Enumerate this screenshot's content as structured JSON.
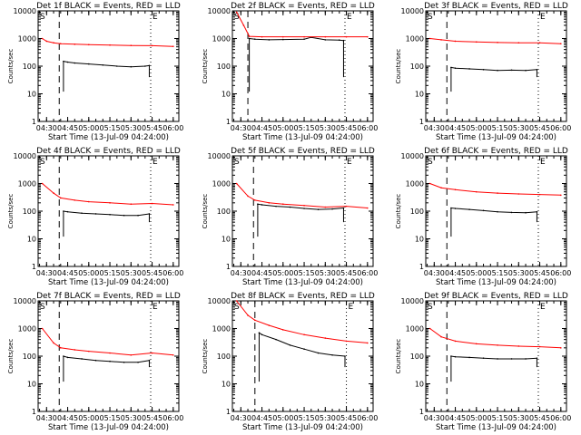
{
  "figure": {
    "x_tick_labels": [
      "04:30",
      "04:45",
      "05:00",
      "05:15",
      "05:30",
      "05:45",
      "06:00"
    ],
    "y_tick_labels": [
      "1",
      "10",
      "100",
      "1000",
      "10000"
    ],
    "xlabel": "Start Time (13-Jul-09 04:24:00)",
    "ylabel": "Counts/sec",
    "marker_s": "S",
    "marker_e": "E",
    "colors": {
      "events": "#000000",
      "lld": "#ff0000"
    }
  },
  "chart_data": [
    {
      "type": "line",
      "title": "Det 1f BLACK = Events, RED = LLD",
      "xlabel": "Start Time (13-Jul-09 04:24:00)",
      "ylabel": "Counts/sec",
      "ylog": true,
      "ylim": [
        1,
        10000
      ],
      "xlim": [
        "04:24",
        "06:04"
      ],
      "start_marker": "04:39",
      "end_marker": "05:44",
      "series": [
        {
          "name": "BLACK = Events",
          "color": "#000000",
          "x": [
            "04:42",
            "04:45",
            "04:50",
            "05:00",
            "05:10",
            "05:20",
            "05:30",
            "05:40",
            "05:43"
          ],
          "values": [
            150,
            140,
            130,
            120,
            110,
            100,
            95,
            100,
            105
          ]
        },
        {
          "name": "RED = LLD",
          "color": "#ff0000",
          "x": [
            "04:27",
            "04:30",
            "04:35",
            "04:40",
            "04:50",
            "05:00",
            "05:15",
            "05:30",
            "05:45",
            "06:00"
          ],
          "values": [
            1000,
            800,
            700,
            650,
            620,
            600,
            580,
            560,
            550,
            520
          ]
        }
      ]
    },
    {
      "type": "line",
      "title": "Det 2f BLACK = Events, RED = LLD",
      "xlabel": "Start Time (13-Jul-09 04:24:00)",
      "ylabel": "Counts/sec",
      "ylog": true,
      "ylim": [
        1,
        10000
      ],
      "xlim": [
        "04:24",
        "06:04"
      ],
      "start_marker": "04:35",
      "end_marker": "05:44",
      "series": [
        {
          "name": "BLACK = Events",
          "color": "#000000",
          "x": [
            "04:36",
            "04:40",
            "04:50",
            "05:00",
            "05:15",
            "05:20",
            "05:30",
            "05:40",
            "05:43"
          ],
          "values": [
            1000,
            950,
            900,
            920,
            950,
            1100,
            900,
            880,
            850
          ]
        },
        {
          "name": "RED = LLD",
          "color": "#ff0000",
          "x": [
            "04:27",
            "04:32",
            "04:36",
            "04:45",
            "05:00",
            "05:15",
            "05:30",
            "05:45",
            "06:00"
          ],
          "values": [
            9000,
            3000,
            1200,
            1150,
            1150,
            1150,
            1150,
            1150,
            1150
          ]
        }
      ]
    },
    {
      "type": "line",
      "title": "Det 3f BLACK = Events, RED = LLD",
      "xlabel": "Start Time (13-Jul-09 04:24:00)",
      "ylabel": "Counts/sec",
      "ylog": true,
      "ylim": [
        1,
        10000
      ],
      "xlim": [
        "04:24",
        "06:04"
      ],
      "start_marker": "04:39",
      "end_marker": "05:44",
      "series": [
        {
          "name": "BLACK = Events",
          "color": "#000000",
          "x": [
            "04:42",
            "04:45",
            "04:55",
            "05:05",
            "05:15",
            "05:25",
            "05:35",
            "05:43"
          ],
          "values": [
            90,
            85,
            80,
            75,
            70,
            72,
            70,
            75
          ]
        },
        {
          "name": "RED = LLD",
          "color": "#ff0000",
          "x": [
            "04:27",
            "04:35",
            "04:45",
            "05:00",
            "05:15",
            "05:30",
            "05:45",
            "06:00"
          ],
          "values": [
            1000,
            900,
            800,
            750,
            720,
            700,
            700,
            650
          ]
        }
      ]
    },
    {
      "type": "line",
      "title": "Det 4f BLACK = Events, RED = LLD",
      "xlabel": "Start Time (13-Jul-09 04:24:00)",
      "ylabel": "Counts/sec",
      "ylog": true,
      "ylim": [
        1,
        10000
      ],
      "xlim": [
        "04:24",
        "06:04"
      ],
      "start_marker": "04:39",
      "end_marker": "05:44",
      "series": [
        {
          "name": "BLACK = Events",
          "color": "#000000",
          "x": [
            "04:42",
            "04:45",
            "04:55",
            "05:05",
            "05:15",
            "05:25",
            "05:35",
            "05:43"
          ],
          "values": [
            100,
            95,
            85,
            80,
            75,
            70,
            70,
            80
          ]
        },
        {
          "name": "RED = LLD",
          "color": "#ff0000",
          "x": [
            "04:27",
            "04:35",
            "04:40",
            "04:50",
            "05:00",
            "05:15",
            "05:30",
            "05:45",
            "06:00"
          ],
          "values": [
            1000,
            450,
            300,
            250,
            220,
            200,
            180,
            190,
            170
          ]
        }
      ]
    },
    {
      "type": "line",
      "title": "Det 5f BLACK = Events, RED = LLD",
      "xlabel": "Start Time (13-Jul-09 04:24:00)",
      "ylabel": "Counts/sec",
      "ylog": true,
      "ylim": [
        1,
        10000
      ],
      "xlim": [
        "04:24",
        "06:04"
      ],
      "start_marker": "04:39",
      "end_marker": "05:44",
      "series": [
        {
          "name": "BLACK = Events",
          "color": "#000000",
          "x": [
            "04:42",
            "04:45",
            "04:55",
            "05:05",
            "05:15",
            "05:25",
            "05:35",
            "05:43"
          ],
          "values": [
            180,
            170,
            150,
            140,
            125,
            115,
            120,
            130
          ]
        },
        {
          "name": "RED = LLD",
          "color": "#ff0000",
          "x": [
            "04:27",
            "04:35",
            "04:40",
            "04:50",
            "05:00",
            "05:15",
            "05:30",
            "05:45",
            "06:00"
          ],
          "values": [
            1000,
            350,
            250,
            200,
            180,
            160,
            140,
            150,
            130
          ]
        }
      ]
    },
    {
      "type": "line",
      "title": "Det 6f BLACK = Events, RED = LLD",
      "xlabel": "Start Time (13-Jul-09 04:24:00)",
      "ylabel": "Counts/sec",
      "ylog": true,
      "ylim": [
        1,
        10000
      ],
      "xlim": [
        "04:24",
        "06:04"
      ],
      "start_marker": "04:39",
      "end_marker": "05:44",
      "series": [
        {
          "name": "BLACK = Events",
          "color": "#000000",
          "x": [
            "04:42",
            "04:45",
            "04:55",
            "05:05",
            "05:15",
            "05:25",
            "05:35",
            "05:43"
          ],
          "values": [
            130,
            125,
            115,
            105,
            95,
            90,
            88,
            95
          ]
        },
        {
          "name": "RED = LLD",
          "color": "#ff0000",
          "x": [
            "04:27",
            "04:35",
            "04:45",
            "05:00",
            "05:15",
            "05:30",
            "05:45",
            "06:00"
          ],
          "values": [
            1000,
            700,
            600,
            500,
            450,
            420,
            400,
            380
          ]
        }
      ]
    },
    {
      "type": "line",
      "title": "Det 7f BLACK = Events, RED = LLD",
      "xlabel": "Start Time (13-Jul-09 04:24:00)",
      "ylabel": "Counts/sec",
      "ylog": true,
      "ylim": [
        1,
        10000
      ],
      "xlim": [
        "04:24",
        "06:04"
      ],
      "start_marker": "04:39",
      "end_marker": "05:44",
      "series": [
        {
          "name": "BLACK = Events",
          "color": "#000000",
          "x": [
            "04:42",
            "04:45",
            "04:55",
            "05:05",
            "05:15",
            "05:25",
            "05:35",
            "05:43"
          ],
          "values": [
            100,
            90,
            80,
            70,
            65,
            60,
            60,
            70
          ]
        },
        {
          "name": "RED = LLD",
          "color": "#ff0000",
          "x": [
            "04:27",
            "04:35",
            "04:40",
            "04:50",
            "05:00",
            "05:15",
            "05:30",
            "05:45",
            "06:00"
          ],
          "values": [
            1000,
            300,
            200,
            170,
            150,
            130,
            110,
            130,
            110
          ]
        }
      ]
    },
    {
      "type": "line",
      "title": "Det 8f BLACK = Events, RED = LLD",
      "xlabel": "Start Time (13-Jul-09 04:24:00)",
      "ylabel": "Counts/sec",
      "ylog": true,
      "ylim": [
        1,
        10000
      ],
      "xlim": [
        "04:24",
        "06:04"
      ],
      "start_marker": "04:40",
      "end_marker": "05:45",
      "series": [
        {
          "name": "BLACK = Events",
          "color": "#000000",
          "x": [
            "04:43",
            "04:45",
            "04:55",
            "05:05",
            "05:15",
            "05:25",
            "05:35",
            "05:44"
          ],
          "values": [
            700,
            600,
            400,
            250,
            180,
            130,
            110,
            100
          ]
        },
        {
          "name": "RED = LLD",
          "color": "#ff0000",
          "x": [
            "04:27",
            "04:35",
            "04:40",
            "04:50",
            "05:00",
            "05:15",
            "05:30",
            "05:45",
            "06:00"
          ],
          "values": [
            10000,
            3000,
            2000,
            1300,
            900,
            600,
            450,
            350,
            300
          ]
        }
      ]
    },
    {
      "type": "line",
      "title": "Det 9f BLACK = Events, RED = LLD",
      "xlabel": "Start Time (13-Jul-09 04:24:00)",
      "ylabel": "Counts/sec",
      "ylog": true,
      "ylim": [
        1,
        10000
      ],
      "xlim": [
        "04:24",
        "06:04"
      ],
      "start_marker": "04:39",
      "end_marker": "05:44",
      "series": [
        {
          "name": "BLACK = Events",
          "color": "#000000",
          "x": [
            "04:42",
            "04:45",
            "04:55",
            "05:05",
            "05:15",
            "05:25",
            "05:35",
            "05:43"
          ],
          "values": [
            100,
            95,
            90,
            85,
            80,
            80,
            80,
            85
          ]
        },
        {
          "name": "RED = LLD",
          "color": "#ff0000",
          "x": [
            "04:27",
            "04:35",
            "04:45",
            "05:00",
            "05:15",
            "05:30",
            "05:45",
            "06:00"
          ],
          "values": [
            1000,
            500,
            350,
            280,
            250,
            230,
            220,
            200
          ]
        }
      ]
    }
  ]
}
